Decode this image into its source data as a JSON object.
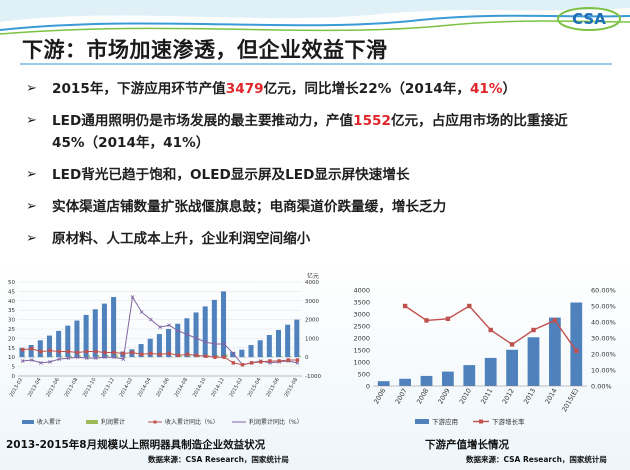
{
  "title": "下游：市场加速渗透，但企业效益下滑",
  "logo_text": "CSA",
  "bullets": [
    {
      "parts": [
        {
          "t": "2015年，下游应用环节产值"
        },
        {
          "t": "3479",
          "red": true
        },
        {
          "t": "亿元，同比增长22%（2014年，"
        },
        {
          "t": "41%",
          "red": true
        },
        {
          "t": "）"
        }
      ]
    },
    {
      "parts": [
        {
          "t": "LED通用照明仍是市场发展的最主要推动力，产值"
        },
        {
          "t": "1552",
          "red": true
        },
        {
          "t": "亿元，占应用市场的比重接近45%（2014年，41%）"
        }
      ]
    },
    {
      "parts": [
        {
          "t": "LED背光已趋于饱和，OLED显示屏及LED显示屏快速增长"
        }
      ]
    },
    {
      "parts": [
        {
          "t": "实体渠道店铺数量扩张战偃旗息鼓；电商渠道价跌量缓，增长乏力"
        }
      ]
    },
    {
      "parts": [
        {
          "t": "原材料、人工成本上升，企业利润空间缩小"
        }
      ]
    }
  ],
  "caption_left": "2013-2015年8月规模以上照明器具制造企业效益状况",
  "caption_right": "下游产值增长情况",
  "source_left": "数据来源：CSA Research，国家统计局",
  "source_right": "数据来源：CSA Research，国家统计局",
  "colors": {
    "bar": "#4f81bd",
    "red_line": "#c0504d",
    "purple_line": "#8064a2",
    "green": "#9bbb59",
    "accent_red": "#e0262b"
  },
  "chart_data": [
    {
      "type": "bar",
      "x": [
        "2013-02",
        "2013-03",
        "2013-04",
        "2013-05",
        "2013-06",
        "2013-07",
        "2013-08",
        "2013-09",
        "2013-10",
        "2013-11",
        "2013-12",
        "2014-01",
        "2014-02",
        "2014-03",
        "2014-04",
        "2014-05",
        "2014-06",
        "2014-07",
        "2014-08",
        "2014-09",
        "2014-10",
        "2014-11",
        "2014-12",
        "2015-01",
        "2015-02",
        "2015-03",
        "2015-04",
        "2015-05",
        "2015-06",
        "2015-07",
        "2015-08"
      ],
      "x_tick_labels": [
        "2013-02",
        "2013-04",
        "2013-06",
        "2013-08",
        "2013-10",
        "2013-12",
        "2014-02",
        "2014-04",
        "2014-06",
        "2014-08",
        "2014-10",
        "2014-12",
        "2015-02",
        "2015-04",
        "2015-06",
        "2015-08"
      ],
      "left_ticks": [
        0,
        5,
        10,
        15,
        20,
        25,
        30,
        35,
        40,
        45,
        50
      ],
      "right_ticks": [
        -1000,
        0,
        1000,
        2000,
        3000,
        4000
      ],
      "right_axis_label": "亿元",
      "series": [
        {
          "name": "收入累计",
          "axis": "right",
          "values": [
            500,
            650,
            900,
            1150,
            1400,
            1680,
            1950,
            2250,
            2550,
            2850,
            3200,
            300,
            420,
            700,
            980,
            1230,
            1500,
            1780,
            2070,
            2380,
            2700,
            3050,
            3500,
            280,
            400,
            650,
            900,
            1180,
            1450,
            1730,
            2000
          ]
        },
        {
          "name": "利润累计",
          "axis": "right",
          "values": [
            20,
            30,
            40,
            55,
            65,
            80,
            90,
            100,
            115,
            125,
            150,
            10,
            15,
            25,
            35,
            45,
            55,
            70,
            80,
            90,
            105,
            120,
            150,
            10,
            15,
            25,
            35,
            45,
            55,
            65,
            75
          ]
        },
        {
          "name": "收入累计同比（%）",
          "axis": "left",
          "values": [
            14,
            14.5,
            13,
            13.5,
            13,
            13,
            12.5,
            13,
            13,
            12.5,
            12.5,
            12,
            12.5,
            11.5,
            12,
            11.5,
            12,
            11,
            11.5,
            11,
            10.5,
            10,
            10,
            7,
            6,
            7,
            7.5,
            8,
            8,
            8.5,
            8.5
          ]
        },
        {
          "name": "利润累计同比（%）",
          "axis": "left",
          "values": [
            8,
            8.5,
            7,
            7.5,
            9,
            9.5,
            10,
            9.5,
            9.5,
            10,
            10,
            9,
            42,
            34,
            30,
            26,
            27,
            24,
            22,
            20,
            18,
            17,
            17,
            12,
            6,
            7,
            8,
            7,
            7.5,
            8,
            7
          ]
        }
      ],
      "legend": [
        "收入累计",
        "利润累计",
        "收入累计同比（%）",
        "利润累计同比（%）"
      ],
      "legend_position": "bottom"
    },
    {
      "type": "bar",
      "categories": [
        "2006",
        "2007",
        "2008",
        "2009",
        "2010",
        "2011",
        "2012",
        "2013",
        "2014",
        "2015(E)"
      ],
      "series": [
        {
          "name": "下游应用",
          "axis": "left",
          "values": [
            200,
            300,
            420,
            600,
            870,
            1170,
            1510,
            2030,
            2850,
            3479
          ]
        },
        {
          "name": "下游增长率",
          "axis": "right",
          "values": [
            null,
            0.5,
            0.41,
            0.42,
            0.5,
            0.35,
            0.26,
            0.35,
            0.41,
            0.22
          ]
        }
      ],
      "left_ticks": [
        0,
        500,
        1000,
        1500,
        2000,
        2500,
        3000,
        3500,
        4000
      ],
      "right_ticks": [
        "0.00%",
        "10.00%",
        "20.00%",
        "30.00%",
        "40.00%",
        "50.00%",
        "60.00%"
      ],
      "ylim_left": [
        0,
        4000
      ],
      "ylim_right": [
        0,
        0.6
      ],
      "legend": [
        "下游应用",
        "下游增长率"
      ],
      "legend_position": "bottom"
    }
  ]
}
